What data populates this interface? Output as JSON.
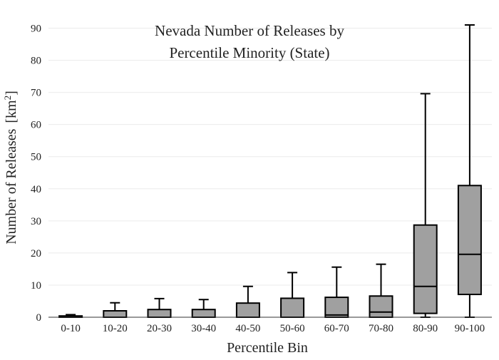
{
  "chart_data": {
    "type": "box",
    "title_lines": [
      "Nevada Number of Releases by",
      "Percentile Minority (State)"
    ],
    "xlabel": "Percentile Bin",
    "ylabel": "Number of Releases",
    "ylabel_unit_prefix": "[km",
    "ylabel_unit_sup": "2",
    "ylabel_unit_suffix": "]",
    "ylim": [
      0,
      91
    ],
    "yticks": [
      0,
      10,
      20,
      30,
      40,
      50,
      60,
      70,
      80,
      90
    ],
    "grid": true,
    "box_color": "#a0a0a0",
    "categories": [
      "0-10",
      "10-20",
      "20-30",
      "30-40",
      "40-50",
      "50-60",
      "60-70",
      "70-80",
      "80-90",
      "90-100"
    ],
    "boxes": [
      {
        "min": 0,
        "q1": 0,
        "median": 0,
        "q3": 0.4,
        "max": 0.8
      },
      {
        "min": 0,
        "q1": 0,
        "median": 0,
        "q3": 2.0,
        "max": 4.5
      },
      {
        "min": 0,
        "q1": 0,
        "median": 0,
        "q3": 2.4,
        "max": 5.8
      },
      {
        "min": 0,
        "q1": 0,
        "median": 0,
        "q3": 2.4,
        "max": 5.5
      },
      {
        "min": 0,
        "q1": 0,
        "median": 0,
        "q3": 4.4,
        "max": 9.6
      },
      {
        "min": 0,
        "q1": 0,
        "median": 0,
        "q3": 5.9,
        "max": 13.9
      },
      {
        "min": 0,
        "q1": 0,
        "median": 0.7,
        "q3": 6.2,
        "max": 15.6
      },
      {
        "min": 0,
        "q1": 0,
        "median": 1.6,
        "q3": 6.6,
        "max": 16.5
      },
      {
        "min": 0,
        "q1": 1.2,
        "median": 9.6,
        "q3": 28.7,
        "max": 69.6
      },
      {
        "min": 0,
        "q1": 7.1,
        "median": 19.6,
        "q3": 41.0,
        "max": 91.0
      }
    ]
  }
}
